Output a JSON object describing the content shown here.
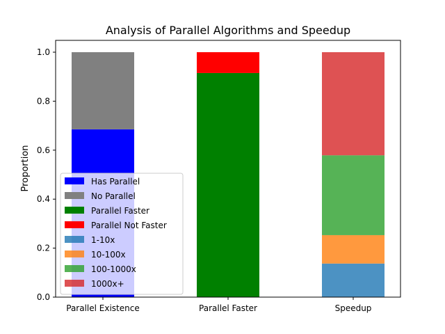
{
  "chart_data": {
    "type": "bar",
    "stacked": true,
    "title": "Analysis of Parallel Algorithms and Speedup",
    "xlabel": "",
    "ylabel": "Proportion",
    "ylim": [
      0,
      1.0
    ],
    "yticks": [
      "0.0",
      "0.2",
      "0.4",
      "0.6",
      "0.8",
      "1.0"
    ],
    "grid": false,
    "legend_position": "lower-left",
    "categories": [
      "Parallel Existence",
      "Parallel Faster",
      "Speedup"
    ],
    "series": [
      {
        "name": "Has Parallel",
        "color": "#0000ff",
        "opacity": 1.0,
        "values": [
          0.685,
          0,
          0
        ]
      },
      {
        "name": "No Parallel",
        "color": "#808080",
        "opacity": 1.0,
        "values": [
          0.315,
          0,
          0
        ]
      },
      {
        "name": "Parallel Faster",
        "color": "#008000",
        "opacity": 1.0,
        "values": [
          0,
          0.915,
          0
        ]
      },
      {
        "name": "Parallel Not Faster",
        "color": "#ff0000",
        "opacity": 1.0,
        "values": [
          0,
          0.085,
          0
        ]
      },
      {
        "name": "1-10x",
        "color": "#1f77b4",
        "opacity": 0.8,
        "values": [
          0,
          0,
          0.137
        ]
      },
      {
        "name": "10-100x",
        "color": "#ff7f0e",
        "opacity": 0.8,
        "values": [
          0,
          0,
          0.116
        ]
      },
      {
        "name": "100-1000x",
        "color": "#2ca02c",
        "opacity": 0.8,
        "values": [
          0,
          0,
          0.326
        ]
      },
      {
        "name": "1000x+",
        "color": "#d62728",
        "opacity": 0.8,
        "values": [
          0,
          0,
          0.421
        ]
      }
    ]
  }
}
